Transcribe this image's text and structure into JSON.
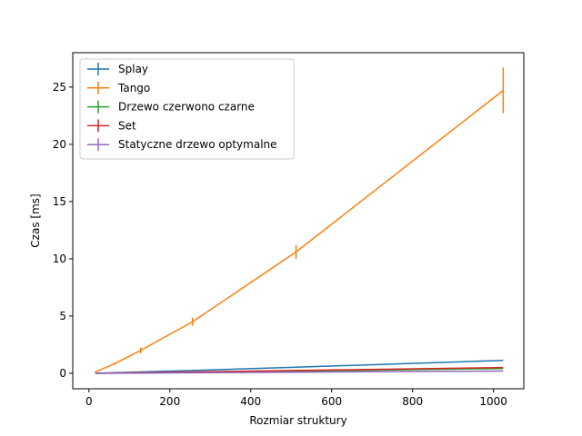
{
  "chart_data": {
    "type": "line",
    "xlabel": "Rozmiar struktury",
    "ylabel": "Czas [ms]",
    "xlim": [
      -40,
      1075
    ],
    "ylim": [
      -1.35,
      28.0
    ],
    "xticks": [
      0,
      200,
      400,
      600,
      800,
      1000
    ],
    "yticks": [
      0,
      5,
      10,
      15,
      20,
      25
    ],
    "grid": false,
    "legend_position": "upper-left",
    "x": [
      16,
      64,
      128,
      256,
      512,
      1024
    ],
    "series": [
      {
        "name": "Splay",
        "color": "#1f77b4",
        "values": [
          0.0,
          0.06,
          0.12,
          0.25,
          0.53,
          1.13
        ],
        "errors": [
          0,
          0,
          0,
          0,
          0,
          0
        ]
      },
      {
        "name": "Tango",
        "color": "#ff7f0e",
        "values": [
          0.12,
          0.85,
          2.0,
          4.5,
          10.6,
          24.7
        ],
        "errors": [
          0.05,
          0.1,
          0.25,
          0.35,
          0.6,
          2.0
        ]
      },
      {
        "name": "Drzewo czerwono czarne",
        "color": "#2ca02c",
        "values": [
          0.0,
          0.02,
          0.04,
          0.09,
          0.19,
          0.42
        ],
        "errors": [
          0,
          0,
          0,
          0,
          0,
          0
        ]
      },
      {
        "name": "Set",
        "color": "#d62728",
        "values": [
          0.0,
          0.03,
          0.06,
          0.12,
          0.25,
          0.5
        ],
        "errors": [
          0,
          0,
          0,
          0,
          0,
          0
        ]
      },
      {
        "name": "Statyczne drzewo optymalne",
        "color": "#9467bd",
        "values": [
          0.0,
          0.01,
          0.02,
          0.05,
          0.1,
          0.2
        ],
        "errors": [
          0,
          0,
          0,
          0,
          0,
          0
        ]
      }
    ]
  }
}
